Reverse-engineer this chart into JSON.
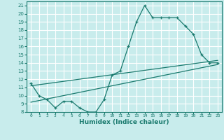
{
  "xlabel": "Humidex (Indice chaleur)",
  "ylabel": "",
  "bg_color": "#c8ecec",
  "grid_color": "#ffffff",
  "line_color": "#1a7a6e",
  "xlim": [
    -0.5,
    23.5
  ],
  "ylim": [
    8,
    21.5
  ],
  "xticks": [
    0,
    1,
    2,
    3,
    4,
    5,
    6,
    7,
    8,
    9,
    10,
    11,
    12,
    13,
    14,
    15,
    16,
    17,
    18,
    19,
    20,
    21,
    22,
    23
  ],
  "yticks": [
    8,
    9,
    10,
    11,
    12,
    13,
    14,
    15,
    16,
    17,
    18,
    19,
    20,
    21
  ],
  "wavy_x": [
    0,
    1,
    2,
    3,
    4,
    5,
    6,
    7,
    8,
    9,
    10,
    11,
    12,
    13,
    14,
    15,
    16,
    17,
    18,
    19,
    20,
    21,
    22,
    23
  ],
  "wavy_y": [
    11.5,
    10.0,
    9.5,
    8.5,
    9.3,
    9.3,
    8.5,
    8.0,
    8.0,
    9.5,
    12.5,
    13.0,
    16.0,
    19.0,
    21.0,
    19.5,
    19.5,
    19.5,
    19.5,
    18.5,
    17.5,
    15.0,
    14.0,
    14.0
  ],
  "line1_x": [
    0,
    23
  ],
  "line1_y": [
    11.2,
    14.3
  ],
  "line2_x": [
    0,
    23
  ],
  "line2_y": [
    9.2,
    13.8
  ]
}
